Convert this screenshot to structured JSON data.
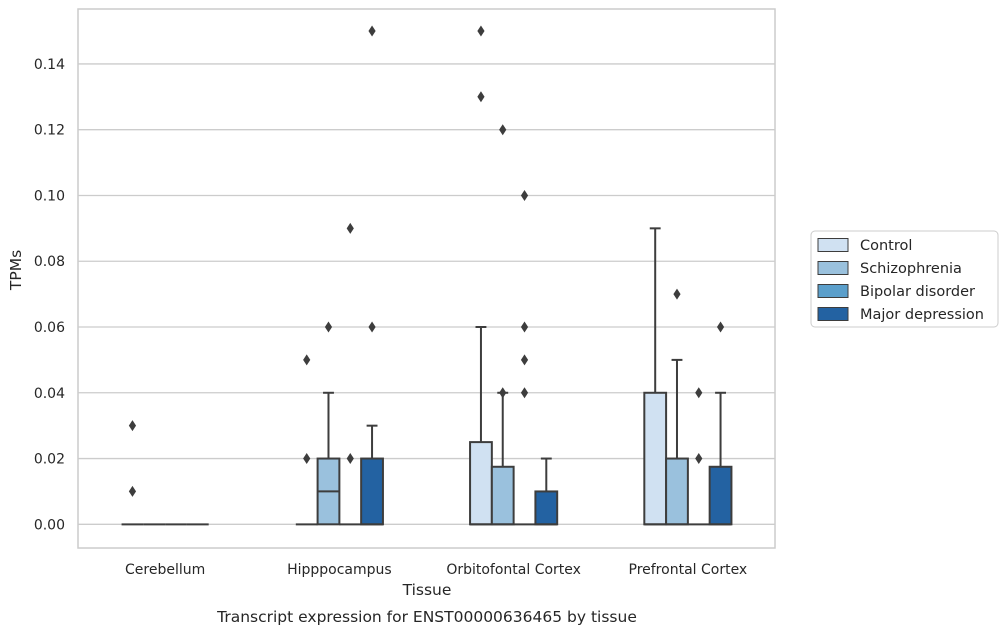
{
  "figure_caption": "Transcript expression for ENST00000636465 by tissue",
  "chart_data": {
    "type": "box",
    "xlabel": "Tissue",
    "ylabel": "TPMs",
    "categories": [
      "Cerebellum",
      "Hipppocampus",
      "Orbitofontal Cortex",
      "Prefrontal Cortex"
    ],
    "ylim": [
      -0.0072,
      0.1567
    ],
    "yticks": [
      0.0,
      0.02,
      0.04,
      0.06,
      0.08,
      0.1,
      0.12,
      0.14
    ],
    "ytick_labels": [
      "0.00",
      "0.02",
      "0.04",
      "0.06",
      "0.08",
      "0.10",
      "0.12",
      "0.14"
    ],
    "grid": "horizontal",
    "legend_position": "right",
    "series": [
      {
        "name": "Control",
        "color": "#d0e1f2",
        "boxes": [
          {
            "q1": 0,
            "median": 0,
            "q3": 0,
            "whislo": 0,
            "whishi": 0,
            "fliers": [
              0.03,
              0.01
            ]
          },
          {
            "q1": 0,
            "median": 0,
            "q3": 0,
            "whislo": 0,
            "whishi": 0,
            "fliers": [
              0.05,
              0.02
            ]
          },
          {
            "q1": 0,
            "median": 0,
            "q3": 0.025,
            "whislo": 0,
            "whishi": 0.06,
            "fliers": [
              0.15,
              0.13
            ]
          },
          {
            "q1": 0,
            "median": 0,
            "q3": 0.04,
            "whislo": 0,
            "whishi": 0.09,
            "fliers": []
          }
        ]
      },
      {
        "name": "Schizophrenia",
        "color": "#9ac1dd",
        "boxes": [
          {
            "q1": 0,
            "median": 0,
            "q3": 0,
            "whislo": 0,
            "whishi": 0,
            "fliers": []
          },
          {
            "q1": 0,
            "median": 0.01,
            "q3": 0.02,
            "whislo": 0,
            "whishi": 0.04,
            "fliers": [
              0.06
            ]
          },
          {
            "q1": 0,
            "median": 0,
            "q3": 0.0175,
            "whislo": 0,
            "whishi": 0.04,
            "fliers": [
              0.12,
              0.04
            ]
          },
          {
            "q1": 0,
            "median": 0,
            "q3": 0.02,
            "whislo": 0,
            "whishi": 0.05,
            "fliers": [
              0.07
            ]
          }
        ]
      },
      {
        "name": "Bipolar disorder",
        "color": "#5b9fcb",
        "boxes": [
          {
            "q1": 0,
            "median": 0,
            "q3": 0,
            "whislo": 0,
            "whishi": 0,
            "fliers": []
          },
          {
            "q1": 0,
            "median": 0,
            "q3": 0,
            "whislo": 0,
            "whishi": 0,
            "fliers": [
              0.09,
              0.02
            ]
          },
          {
            "q1": 0,
            "median": 0,
            "q3": 0,
            "whislo": 0,
            "whishi": 0,
            "fliers": [
              0.1,
              0.06,
              0.05,
              0.04
            ]
          },
          {
            "q1": 0,
            "median": 0,
            "q3": 0,
            "whislo": 0,
            "whishi": 0,
            "fliers": [
              0.04,
              0.02
            ]
          }
        ]
      },
      {
        "name": "Major depression",
        "color": "#2362a2",
        "boxes": [
          {
            "q1": 0,
            "median": 0,
            "q3": 0,
            "whislo": 0,
            "whishi": 0,
            "fliers": []
          },
          {
            "q1": 0,
            "median": 0,
            "q3": 0.02,
            "whislo": 0,
            "whishi": 0.03,
            "fliers": [
              0.15,
              0.06
            ]
          },
          {
            "q1": 0,
            "median": 0,
            "q3": 0.01,
            "whislo": 0,
            "whishi": 0.02,
            "fliers": []
          },
          {
            "q1": 0,
            "median": 0,
            "q3": 0.0175,
            "whislo": 0,
            "whishi": 0.04,
            "fliers": [
              0.06
            ]
          }
        ]
      }
    ]
  }
}
